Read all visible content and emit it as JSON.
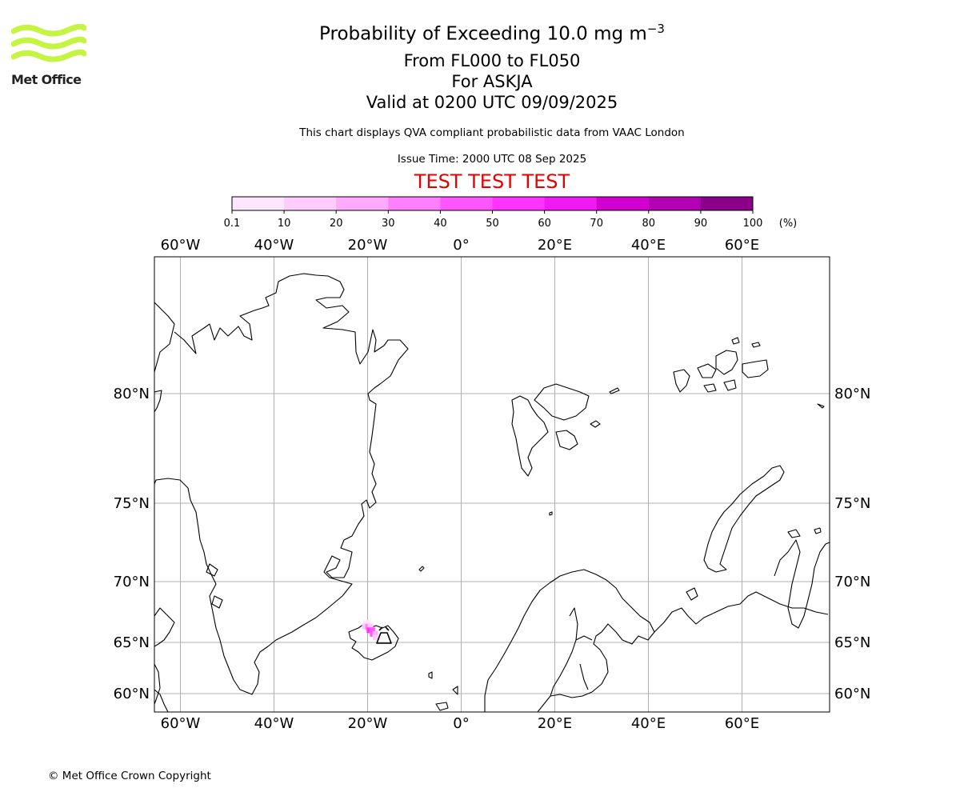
{
  "header": {
    "logo_text": "Met Office",
    "title_prefix": "Probability of Exceeding 10.0 mg m",
    "title_exponent": "−3",
    "level_range": "From FL000 to FL050",
    "volcano": "For ASKJA",
    "valid_time": "Valid at 0200 UTC 09/09/2025",
    "description": "This chart displays QVA compliant probabilistic data from VAAC London",
    "issue_time": "Issue Time: 2000 UTC 08 Sep 2025",
    "test_banner": "TEST TEST TEST"
  },
  "colorbar": {
    "ticks": [
      "0.1",
      "10",
      "20",
      "30",
      "40",
      "50",
      "60",
      "70",
      "80",
      "90",
      "100"
    ],
    "unit": "(%)",
    "colors": [
      "#ffe6ff",
      "#ffccff",
      "#ffaaff",
      "#ff80ff",
      "#ff55ff",
      "#ff33ff",
      "#f21af2",
      "#d100d1",
      "#b300b3",
      "#8a008a",
      "#660066"
    ]
  },
  "map": {
    "lon_labels": [
      "60°W",
      "40°W",
      "20°W",
      "0°",
      "20°E",
      "40°E",
      "60°E"
    ],
    "lat_labels": [
      "80°N",
      "75°N",
      "70°N",
      "65°N",
      "60°N"
    ],
    "lon_values": [
      -60,
      -40,
      -20,
      0,
      20,
      40,
      60
    ],
    "lat_values": [
      80,
      75,
      70,
      65,
      60
    ],
    "volcano_name": "ASKJA",
    "volcano_lon": -16.7,
    "volcano_lat": 65.0,
    "ash_cells": [
      {
        "lon": -20.4,
        "lat": 66.6,
        "prob": 5
      },
      {
        "lon": -19.8,
        "lat": 66.6,
        "prob": 5
      },
      {
        "lon": -20.6,
        "lat": 66.3,
        "prob": 15
      },
      {
        "lon": -19.9,
        "lat": 66.3,
        "prob": 35
      },
      {
        "lon": -19.4,
        "lat": 66.3,
        "prob": 15
      },
      {
        "lon": -19.6,
        "lat": 66.0,
        "prob": 55
      },
      {
        "lon": -19.0,
        "lat": 66.0,
        "prob": 45
      },
      {
        "lon": -18.9,
        "lat": 65.7,
        "prob": 45
      },
      {
        "lon": -18.4,
        "lat": 65.7,
        "prob": 25
      },
      {
        "lon": -18.3,
        "lat": 65.4,
        "prob": 15
      }
    ],
    "colors": {
      "coast": "#000000",
      "grid": "#b0b0b0",
      "frame": "#000000"
    }
  },
  "footer": {
    "copyright": "© Met Office Crown Copyright"
  }
}
